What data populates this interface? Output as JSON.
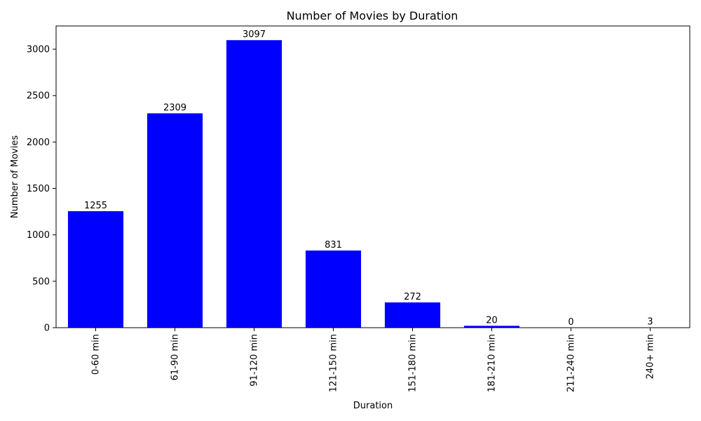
{
  "chart_data": {
    "type": "bar",
    "title": "Number of Movies by Duration",
    "xlabel": "Duration",
    "ylabel": "Number of Movies",
    "categories": [
      "0-60 min",
      "61-90 min",
      "91-120 min",
      "121-150 min",
      "151-180 min",
      "181-210 min",
      "211-240 min",
      "240+ min"
    ],
    "values": [
      1255,
      2309,
      3097,
      831,
      272,
      20,
      0,
      3
    ],
    "data_labels": [
      "1255",
      "2309",
      "3097",
      "831",
      "272",
      "20",
      "0",
      "3"
    ],
    "ylim": [
      0,
      3250
    ],
    "yticks": [
      0,
      500,
      1000,
      1500,
      2000,
      2500,
      3000
    ],
    "ytick_labels": [
      "0",
      "500",
      "1000",
      "1500",
      "2000",
      "2500",
      "3000"
    ],
    "bar_color": "#0000ff",
    "grid": false,
    "legend": "none"
  }
}
